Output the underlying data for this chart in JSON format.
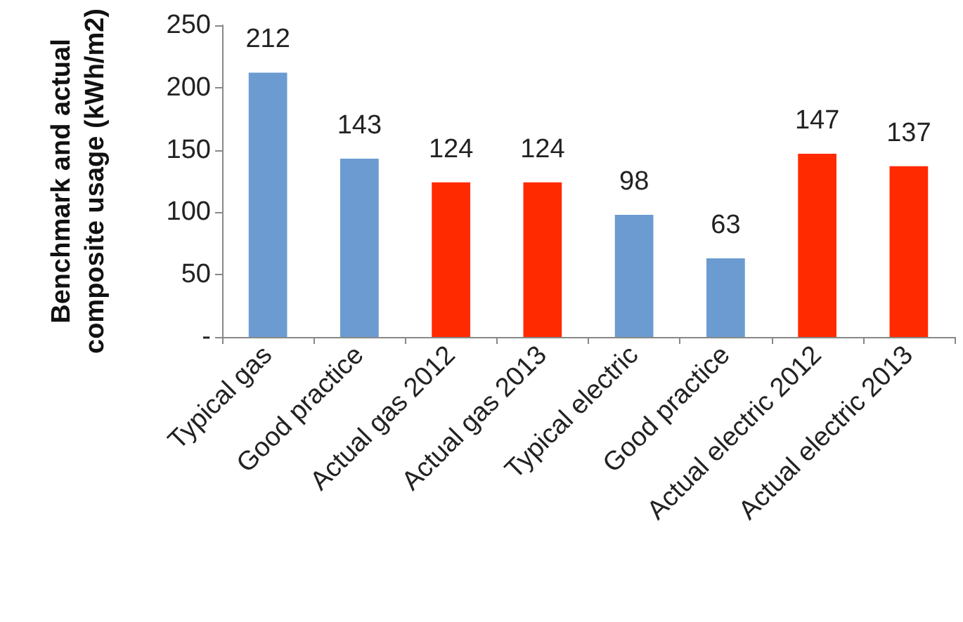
{
  "chart_data": {
    "type": "bar",
    "ylabel": "Benchmark and actual composite usage (kWh/m2)",
    "categories": [
      "Typical gas",
      "Good practice",
      "Actual gas 2012",
      "Actual gas 2013",
      "Typical electric",
      "Good practice",
      "Actual electric 2012",
      "Actual electric 2013"
    ],
    "values": [
      212,
      143,
      124,
      124,
      98,
      63,
      147,
      137
    ],
    "colors": [
      "#6b9bd1",
      "#6b9bd1",
      "#ff2a00",
      "#ff2a00",
      "#6b9bd1",
      "#6b9bd1",
      "#ff2a00",
      "#ff2a00"
    ],
    "ylim": [
      0,
      250
    ],
    "yticks": [
      {
        "value": 0,
        "label": "-"
      },
      50,
      100,
      150,
      200,
      250
    ],
    "data_labels": true
  }
}
